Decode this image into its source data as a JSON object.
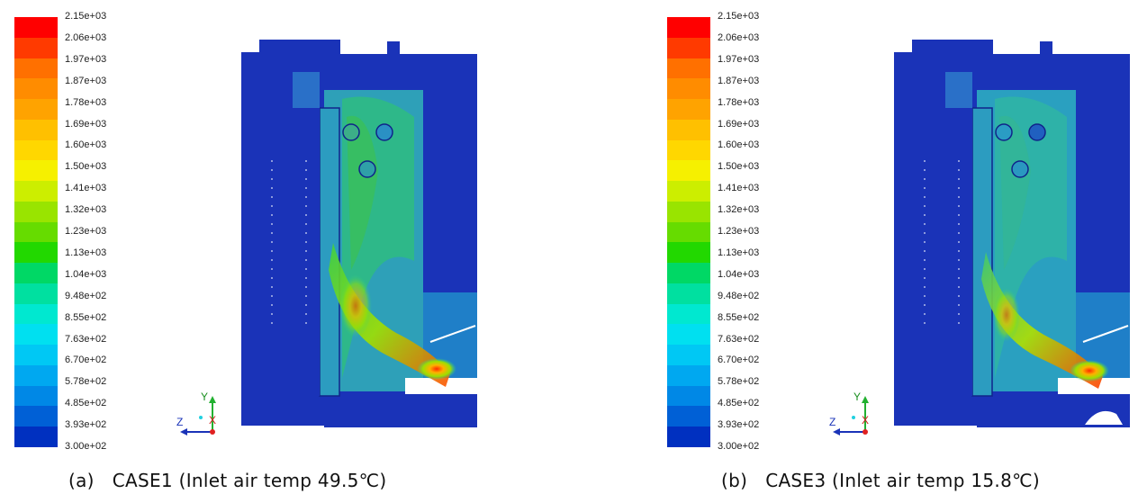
{
  "colorbar": {
    "labels": [
      "2.15e+03",
      "2.06e+03",
      "1.97e+03",
      "1.87e+03",
      "1.78e+03",
      "1.69e+03",
      "1.60e+03",
      "1.50e+03",
      "1.41e+03",
      "1.32e+03",
      "1.23e+03",
      "1.13e+03",
      "1.04e+03",
      "9.48e+02",
      "8.55e+02",
      "7.63e+02",
      "6.70e+02",
      "5.78e+02",
      "4.85e+02",
      "3.93e+02",
      "3.00e+02"
    ],
    "colors": [
      "#ff0000",
      "#ff3a00",
      "#ff7000",
      "#ff8c00",
      "#ffa300",
      "#ffc000",
      "#ffd700",
      "#f6f000",
      "#ccee00",
      "#99e400",
      "#66dc00",
      "#22d800",
      "#00d865",
      "#00e0a0",
      "#00e8d0",
      "#00e0f0",
      "#00c8f4",
      "#00a8f0",
      "#0088e6",
      "#0060d6",
      "#0030c0"
    ]
  },
  "panels": [
    {
      "caption_label": "(a)",
      "caption_text": "CASE1 (Inlet air temp 49.5℃)",
      "axes": {
        "y": "Y",
        "z": "Z",
        "x": "X"
      }
    },
    {
      "caption_label": "(b)",
      "caption_text": "CASE3 (Inlet air temp 15.8℃)",
      "axes": {
        "y": "Y",
        "z": "Z",
        "x": "X"
      }
    }
  ]
}
